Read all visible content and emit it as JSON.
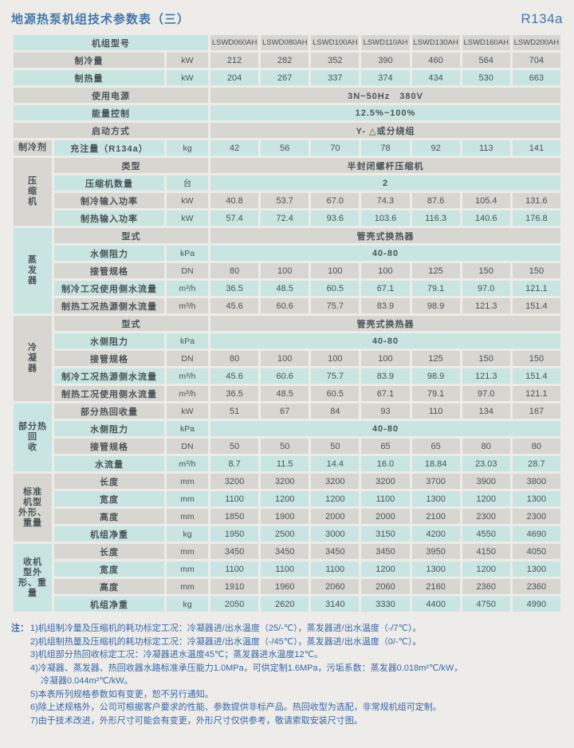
{
  "header": {
    "title": "地源热泵机组技术参数表（三）",
    "refrigerant": "R134a"
  },
  "colors": {
    "row_gray": "#d7d6d1",
    "row_teal": "#c8e5e2",
    "title_blue": "#4377ac",
    "notes_blue": "#3767ab",
    "text": "#4b5357",
    "page_bg": "#edece8"
  },
  "table": {
    "rows": [
      {
        "label": "机组型号",
        "ls": "A",
        "c": "g",
        "label_c": "t",
        "model_cells": true,
        "cells": [
          "LSWD060AH",
          "LSWD080AH",
          "LSWD100AH",
          "LSWD110AH",
          "LSWD130AH",
          "LSWD160AH",
          "LSWD200AH"
        ]
      },
      {
        "label": "制冷量",
        "ls": "B",
        "unit": "kW",
        "c": "g",
        "cells": [
          "212",
          "282",
          "352",
          "390",
          "460",
          "564",
          "704"
        ]
      },
      {
        "label": "制热量",
        "ls": "B",
        "unit": "kW",
        "c": "t",
        "cells": [
          "204",
          "267",
          "337",
          "374",
          "434",
          "530",
          "663"
        ]
      },
      {
        "label": "使用电源",
        "ls": "A",
        "c": "g",
        "merged": "3N~50Hz　380V"
      },
      {
        "label": "能量控制",
        "ls": "A",
        "c": "t",
        "merged": "12.5%~100%"
      },
      {
        "label": "启动方式",
        "ls": "A",
        "c": "g",
        "merged": "Y- △或分绕组"
      },
      {
        "group": {
          "text": "制冷剂",
          "rows": 1,
          "c": "g"
        },
        "label": "充注量（R134a）",
        "ls": "D",
        "unit": "kg",
        "c": "t",
        "cells": [
          "42",
          "56",
          "70",
          "78",
          "92",
          "113",
          "141"
        ]
      },
      {
        "group": {
          "text": "压\n缩\n机",
          "rows": 4,
          "c": "g"
        },
        "label": "类型",
        "ls": "C",
        "c": "g",
        "merged": "半封闭螺杆压缩机"
      },
      {
        "label": "压缩机数量",
        "ls": "D",
        "unit": "台",
        "c": "t",
        "merged": "2"
      },
      {
        "label": "制冷输入功率",
        "ls": "D",
        "unit": "kW",
        "c": "g",
        "cells": [
          "40.8",
          "53.7",
          "67.0",
          "74.3",
          "87.6",
          "105.4",
          "131.6"
        ]
      },
      {
        "label": "制热输入功率",
        "ls": "D",
        "unit": "kW",
        "c": "t",
        "cells": [
          "57.4",
          "72.4",
          "93.6",
          "103.6",
          "116.3",
          "140.6",
          "176.8"
        ]
      },
      {
        "group": {
          "text": "蒸\n发\n器",
          "rows": 5,
          "c": "t"
        },
        "label": "型式",
        "ls": "C",
        "c": "g",
        "merged": "管壳式换热器"
      },
      {
        "label": "水侧阻力",
        "ls": "D",
        "unit": "kPa",
        "c": "t",
        "merged": "40-80"
      },
      {
        "label": "接管规格",
        "ls": "D",
        "unit": "DN",
        "c": "g",
        "cells": [
          "80",
          "100",
          "100",
          "100",
          "125",
          "150",
          "150"
        ]
      },
      {
        "label": "制冷工况使用侧水流量",
        "ls": "D",
        "unit": "m³/h",
        "c": "t",
        "cells": [
          "36.5",
          "48.5",
          "60.5",
          "67.1",
          "79.1",
          "97.0",
          "121.1"
        ]
      },
      {
        "label": "制热工况热源侧水流量",
        "ls": "D",
        "unit": "m³/h",
        "c": "g",
        "cells": [
          "45.6",
          "60.6",
          "75.7",
          "83.9",
          "98.9",
          "121.3",
          "151.4"
        ]
      },
      {
        "group": {
          "text": "冷\n凝\n器",
          "rows": 5,
          "c": "g"
        },
        "label": "型式",
        "ls": "C",
        "c": "g",
        "merged": "管壳式换热器"
      },
      {
        "label": "水侧阻力",
        "ls": "D",
        "unit": "kPa",
        "c": "t",
        "merged": "40-80"
      },
      {
        "label": "接管规格",
        "ls": "D",
        "unit": "DN",
        "c": "g",
        "cells": [
          "80",
          "100",
          "100",
          "100",
          "125",
          "150",
          "150"
        ]
      },
      {
        "label": "制冷工况热源侧水流量",
        "ls": "D",
        "unit": "m³/h",
        "c": "t",
        "cells": [
          "45.6",
          "60.6",
          "75.7",
          "83.9",
          "98.9",
          "121.3",
          "151.4"
        ]
      },
      {
        "label": "制热工况使用侧水流量",
        "ls": "D",
        "unit": "m³/h",
        "c": "g",
        "cells": [
          "36.5",
          "48.5",
          "60.5",
          "67.1",
          "79.1",
          "97.0",
          "121.1"
        ]
      },
      {
        "group": {
          "text": "部分热回\n收",
          "rows": 4,
          "c": "t"
        },
        "label": "部分热回收量",
        "ls": "D",
        "unit": "kW",
        "c": "g",
        "cells": [
          "51",
          "67",
          "84",
          "93",
          "110",
          "134",
          "167"
        ]
      },
      {
        "label": "水侧阻力",
        "ls": "D",
        "unit": "kPa",
        "c": "t",
        "merged": "40-80"
      },
      {
        "label": "接管规格",
        "ls": "D",
        "unit": "DN",
        "c": "g",
        "cells": [
          "50",
          "50",
          "50",
          "65",
          "65",
          "80",
          "80"
        ]
      },
      {
        "label": "水流量",
        "ls": "D",
        "unit": "m³/h",
        "c": "t",
        "cells": [
          "8.7",
          "11.5",
          "14.4",
          "16.0",
          "18.84",
          "23.03",
          "28.7"
        ]
      },
      {
        "group": {
          "text": "标准\n机型\n外形、\n重量",
          "rows": 4,
          "c": "g"
        },
        "label": "长度",
        "ls": "D",
        "unit": "mm",
        "c": "g",
        "cells": [
          "3200",
          "3200",
          "3200",
          "3200",
          "3700",
          "3900",
          "3800"
        ]
      },
      {
        "label": "宽度",
        "ls": "D",
        "unit": "mm",
        "c": "t",
        "cells": [
          "1100",
          "1200",
          "1200",
          "1100",
          "1300",
          "1200",
          "1300"
        ]
      },
      {
        "label": "高度",
        "ls": "D",
        "unit": "mm",
        "c": "g",
        "cells": [
          "1850",
          "1900",
          "2000",
          "2000",
          "2100",
          "2300",
          "2300"
        ]
      },
      {
        "label": "机组净重",
        "ls": "D",
        "unit": "kg",
        "c": "t",
        "cells": [
          "1950",
          "2500",
          "3000",
          "3150",
          "4200",
          "4550",
          "4690"
        ]
      },
      {
        "group": {
          "text": "收机\n型外\n形、重\n量",
          "rows": 4,
          "c": "t"
        },
        "label": "长度",
        "ls": "D",
        "unit": "mm",
        "c": "g",
        "cells": [
          "3450",
          "3450",
          "3450",
          "3450",
          "3950",
          "4150",
          "4050"
        ]
      },
      {
        "label": "宽度",
        "ls": "D",
        "unit": "mm",
        "c": "t",
        "cells": [
          "1100",
          "1100",
          "1100",
          "1200",
          "1300",
          "1200",
          "1300"
        ]
      },
      {
        "label": "高度",
        "ls": "D",
        "unit": "mm",
        "c": "g",
        "cells": [
          "1910",
          "1960",
          "2060",
          "2060",
          "2160",
          "2360",
          "2360"
        ]
      },
      {
        "label": "机组净重",
        "ls": "D",
        "unit": "kg",
        "c": "t",
        "cells": [
          "2050",
          "2620",
          "3140",
          "3330",
          "4400",
          "4750",
          "4990"
        ]
      }
    ]
  },
  "notes": {
    "prefix": "注：",
    "items": [
      {
        "text": "1)机组制冷量及压缩机的耗功标定工况：冷凝器进/出水温度（25/-℃），蒸发器进/出水温度（-/7℃）。"
      },
      {
        "text": "2)机组制热量及压缩机的耗功标定工况：冷凝器进/出水温度（-/45℃），蒸发器进/出水温度（0/-℃）。"
      },
      {
        "text": "3)机组部分热回收标定工况：冷凝器进水温度45℃；蒸发器进水温度12℃。"
      },
      {
        "text": "4)冷凝器、蒸发器、热回收器水路标准承压能力1.0MPa，可供定制1.6MPa，污垢系数：蒸发器0.018m²℃/kW，"
      },
      {
        "text": "冷凝器0.044m²℃/kW。",
        "cont": true
      },
      {
        "text": "5)本表所列规格参数如有变更，恕不另行通知。"
      },
      {
        "text": "6)除上述规格外，公司可根据客户要求的性能、参数提供非标产品。热回收型为选配，非常规机组可定制。"
      },
      {
        "text": "7)由于技术改进，外形尺寸可能会有变更，外形尺寸仅供参考，敬请索取安装尺寸图。"
      }
    ]
  }
}
